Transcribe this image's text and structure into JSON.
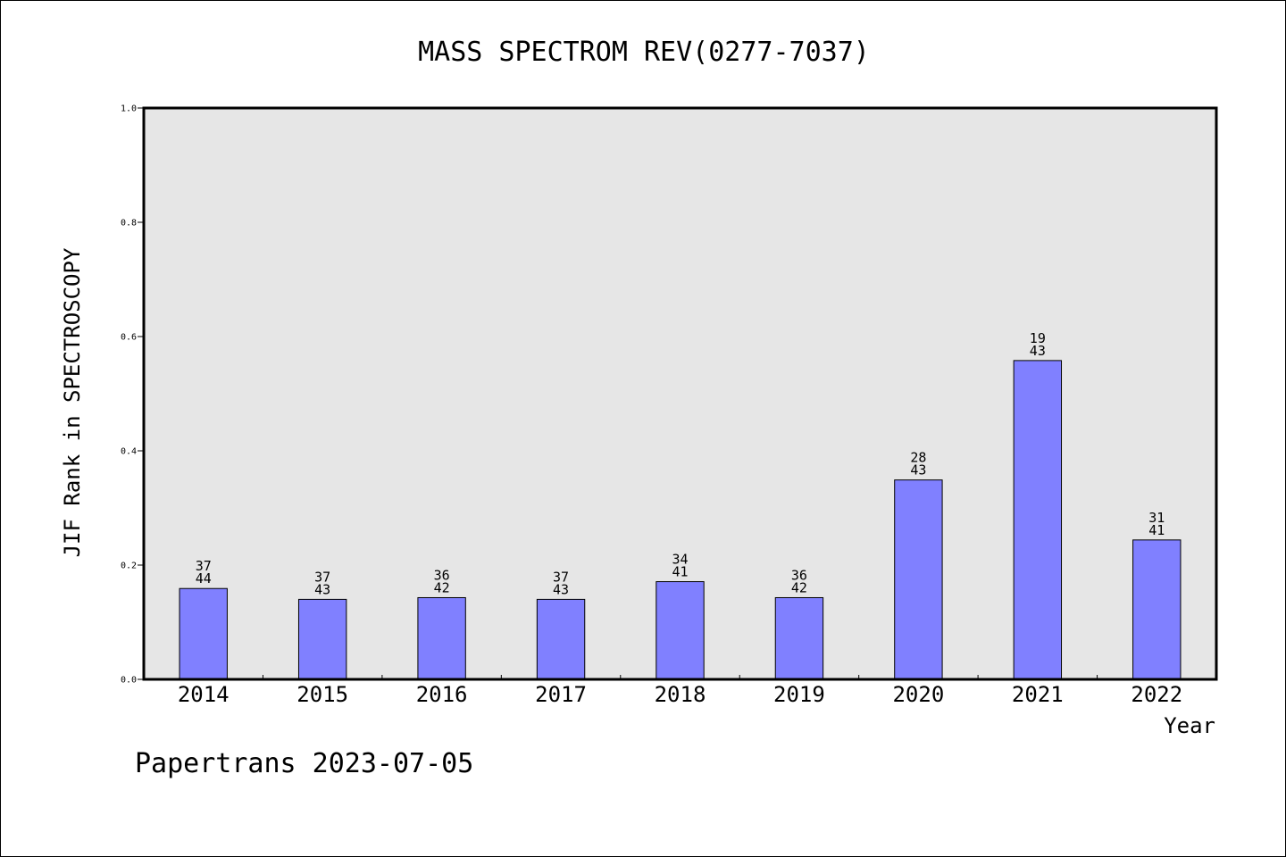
{
  "chart_data": {
    "type": "bar",
    "title": "MASS SPECTROM REV(0277-7037)",
    "xlabel": "Year",
    "ylabel": "JIF Rank in SPECTROSCOPY",
    "categories": [
      "2014",
      "2015",
      "2016",
      "2017",
      "2018",
      "2019",
      "2020",
      "2021",
      "2022"
    ],
    "values": [
      0.159,
      0.14,
      0.143,
      0.14,
      0.171,
      0.143,
      0.349,
      0.558,
      0.244
    ],
    "rank": [
      "37",
      "37",
      "36",
      "37",
      "34",
      "36",
      "28",
      "19",
      "31"
    ],
    "total": [
      "44",
      "43",
      "42",
      "43",
      "41",
      "42",
      "43",
      "43",
      "41"
    ],
    "ylim": [
      0,
      1.0
    ],
    "yticks": [
      "0.0",
      "0.2",
      "0.4",
      "0.6",
      "0.8",
      "1.0"
    ],
    "grid": false,
    "colors": {
      "bar": "#8080ff",
      "plot_bg": "#e6e6e6"
    }
  },
  "footer": "Papertrans 2023-07-05"
}
